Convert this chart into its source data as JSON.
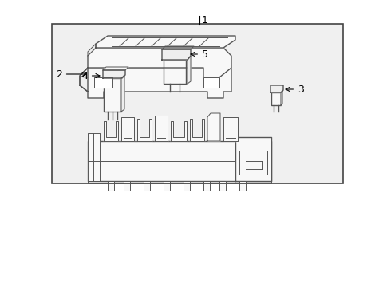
{
  "bg_color": "#ffffff",
  "lc": "#555555",
  "lc_dark": "#333333",
  "lw_main": 1.0,
  "lw_thin": 0.7,
  "fill_light": "#f8f8f8",
  "fill_mid": "#eeeeee",
  "box_fill": "#ebebeb",
  "figsize": [
    4.9,
    3.6
  ],
  "dpi": 100
}
